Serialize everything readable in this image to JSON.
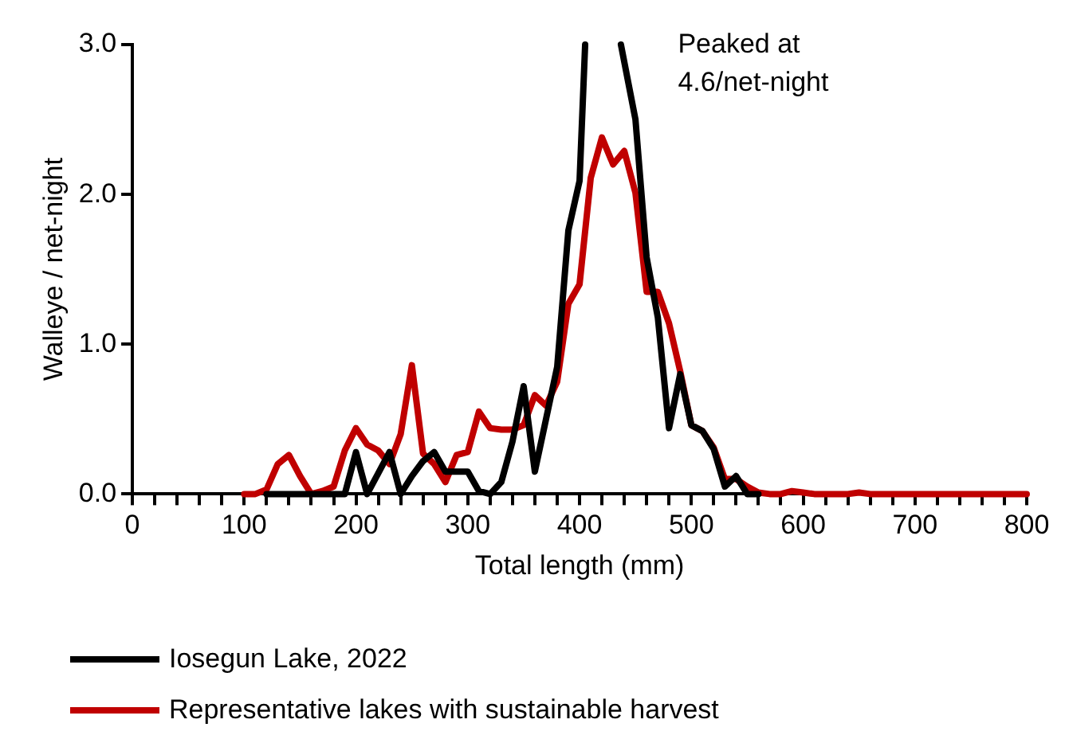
{
  "chart_data": {
    "type": "line",
    "xlabel": "Total length (mm)",
    "ylabel": "Walleye / net-night",
    "annotations": [
      "Peaked at\n4.6/net-night"
    ],
    "xlim": [
      0,
      800
    ],
    "xticks": [
      0,
      {
        "value": 20,
        "label": null
      },
      {
        "value": 40,
        "label": null
      },
      {
        "value": 60,
        "label": null
      },
      {
        "value": 80,
        "label": null
      },
      100,
      {
        "value": 120,
        "label": null
      },
      {
        "value": 140,
        "label": null
      },
      {
        "value": 160,
        "label": null
      },
      {
        "value": 180,
        "label": null
      },
      200,
      {
        "value": 220,
        "label": null
      },
      {
        "value": 240,
        "label": null
      },
      {
        "value": 260,
        "label": null
      },
      {
        "value": 280,
        "label": null
      },
      300,
      {
        "value": 320,
        "label": null
      },
      {
        "value": 340,
        "label": null
      },
      {
        "value": 360,
        "label": null
      },
      {
        "value": 380,
        "label": null
      },
      400,
      {
        "value": 420,
        "label": null
      },
      {
        "value": 440,
        "label": null
      },
      {
        "value": 460,
        "label": null
      },
      {
        "value": 480,
        "label": null
      },
      500,
      {
        "value": 520,
        "label": null
      },
      {
        "value": 540,
        "label": null
      },
      {
        "value": 560,
        "label": null
      },
      {
        "value": 580,
        "label": null
      },
      600,
      {
        "value": 620,
        "label": null
      },
      {
        "value": 640,
        "label": null
      },
      {
        "value": 660,
        "label": null
      },
      {
        "value": 680,
        "label": null
      },
      700,
      {
        "value": 720,
        "label": null
      },
      {
        "value": 740,
        "label": null
      },
      {
        "value": 760,
        "label": null
      },
      {
        "value": 780,
        "label": null
      },
      800
    ],
    "ylim": [
      0,
      3
    ],
    "yticks": [
      {
        "value": 0,
        "label": "0.0"
      },
      {
        "value": 1,
        "label": "1.0"
      },
      {
        "value": 2,
        "label": "2.0"
      },
      {
        "value": 3,
        "label": "3.0"
      }
    ],
    "grid": false,
    "legend": "bottom",
    "marker": "none",
    "line_style": "solid",
    "series": [
      {
        "name": "Iosegun Lake, 2022",
        "color": "#000000",
        "x": [
          120,
          130,
          140,
          150,
          160,
          170,
          180,
          190,
          200,
          210,
          220,
          230,
          240,
          250,
          260,
          270,
          280,
          290,
          300,
          310,
          320,
          330,
          340,
          350,
          360,
          370,
          380,
          390,
          400,
          405,
          410,
          437,
          450,
          460,
          470,
          480,
          490,
          500,
          510,
          520,
          530,
          540,
          550,
          560
        ],
        "values": [
          0,
          0,
          0,
          0,
          0,
          0,
          0,
          0,
          0.28,
          0,
          0.14,
          0.28,
          0,
          0.12,
          0.22,
          0.28,
          0.15,
          0.15,
          0.15,
          0.02,
          0,
          0.08,
          0.35,
          0.72,
          0.15,
          0.5,
          0.85,
          1.76,
          2.09,
          3.0,
          null,
          3.0,
          2.5,
          1.58,
          1.18,
          0.44,
          0.8,
          0.46,
          0.42,
          0.3,
          0.05,
          0.12,
          0,
          0
        ]
      },
      {
        "name": "Representative lakes with sustainable harvest",
        "color": "#c00000",
        "x": [
          100,
          110,
          120,
          130,
          140,
          150,
          160,
          170,
          180,
          190,
          200,
          210,
          220,
          230,
          240,
          250,
          260,
          270,
          280,
          290,
          300,
          310,
          320,
          330,
          340,
          350,
          360,
          370,
          380,
          390,
          400,
          410,
          420,
          430,
          440,
          450,
          460,
          470,
          480,
          490,
          500,
          510,
          520,
          530,
          540,
          550,
          560,
          570,
          580,
          590,
          600,
          610,
          620,
          630,
          640,
          650,
          660,
          670,
          680,
          690,
          700,
          710,
          720,
          730,
          740,
          750,
          760,
          770,
          780,
          790,
          800
        ],
        "values": [
          0,
          0,
          0.03,
          0.2,
          0.26,
          0.12,
          0,
          0.02,
          0.05,
          0.29,
          0.44,
          0.33,
          0.29,
          0.2,
          0.4,
          0.86,
          0.27,
          0.2,
          0.08,
          0.26,
          0.28,
          0.55,
          0.44,
          0.43,
          0.43,
          0.46,
          0.66,
          0.59,
          0.75,
          1.27,
          1.4,
          2.11,
          2.38,
          2.2,
          2.29,
          2.01,
          1.35,
          1.35,
          1.14,
          0.82,
          0.46,
          0.42,
          0.31,
          0.1,
          0.1,
          0.05,
          0.01,
          0,
          0,
          0.02,
          0.01,
          0,
          0,
          0,
          0,
          0.01,
          0,
          0,
          0,
          0,
          0,
          0,
          0,
          0,
          0,
          0,
          0,
          0,
          0,
          0,
          0
        ]
      }
    ]
  }
}
